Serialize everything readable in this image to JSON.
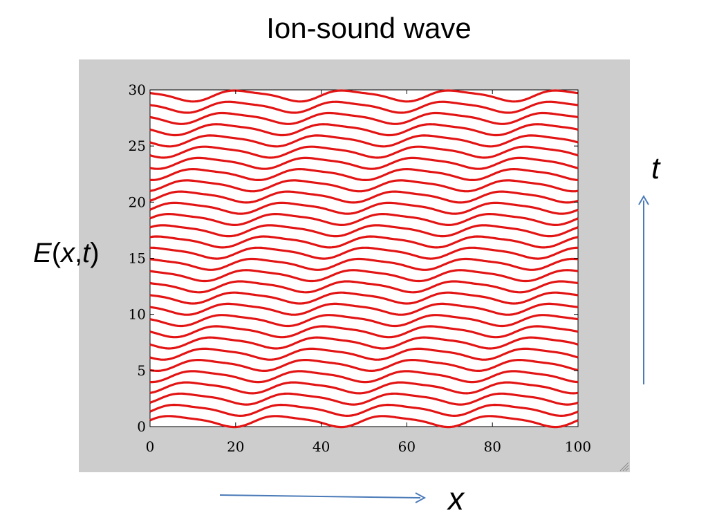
{
  "slide": {
    "title": "Ion-sound wave",
    "ylabel_prefix": "E",
    "ylabel_open": "(",
    "ylabel_x": "x",
    "ylabel_comma": ",",
    "ylabel_t": "t",
    "ylabel_close": ")",
    "time_arrow_label": "t",
    "space_arrow_label": "x"
  },
  "colors": {
    "curve": "#e31414",
    "arrow": "#4a7ab8",
    "frame_background": "#cdcdcd",
    "plot_background": "#ffffff"
  },
  "chart_data": {
    "type": "line",
    "title": "Ion-sound wave",
    "xlabel": "x",
    "ylabel": "E(x,t)",
    "xlim": [
      0,
      100
    ],
    "ylim": [
      0,
      30
    ],
    "xticks": [
      0,
      20,
      40,
      60,
      80,
      100
    ],
    "yticks": [
      0,
      5,
      10,
      15,
      20,
      25,
      30
    ],
    "grid": false,
    "legend": "none",
    "series_description": "30 stacked traces E(x,t)+t, t = 0..29",
    "baselines": [
      0.5,
      1.5,
      2.5,
      3.5,
      4.5,
      5.5,
      6.5,
      7.5,
      8.5,
      9.5,
      10.5,
      11.5,
      12.5,
      13.5,
      14.5,
      15.5,
      16.5,
      17.5,
      18.5,
      19.5,
      20.5,
      21.5,
      22.5,
      23.5,
      24.5,
      25.5,
      26.5,
      27.5,
      28.5,
      29.5
    ],
    "wave": {
      "amplitude": 0.45,
      "wavelength": 25,
      "phase_shift_per_trace": 0.35,
      "harmonic_ratio": 0.25
    }
  }
}
